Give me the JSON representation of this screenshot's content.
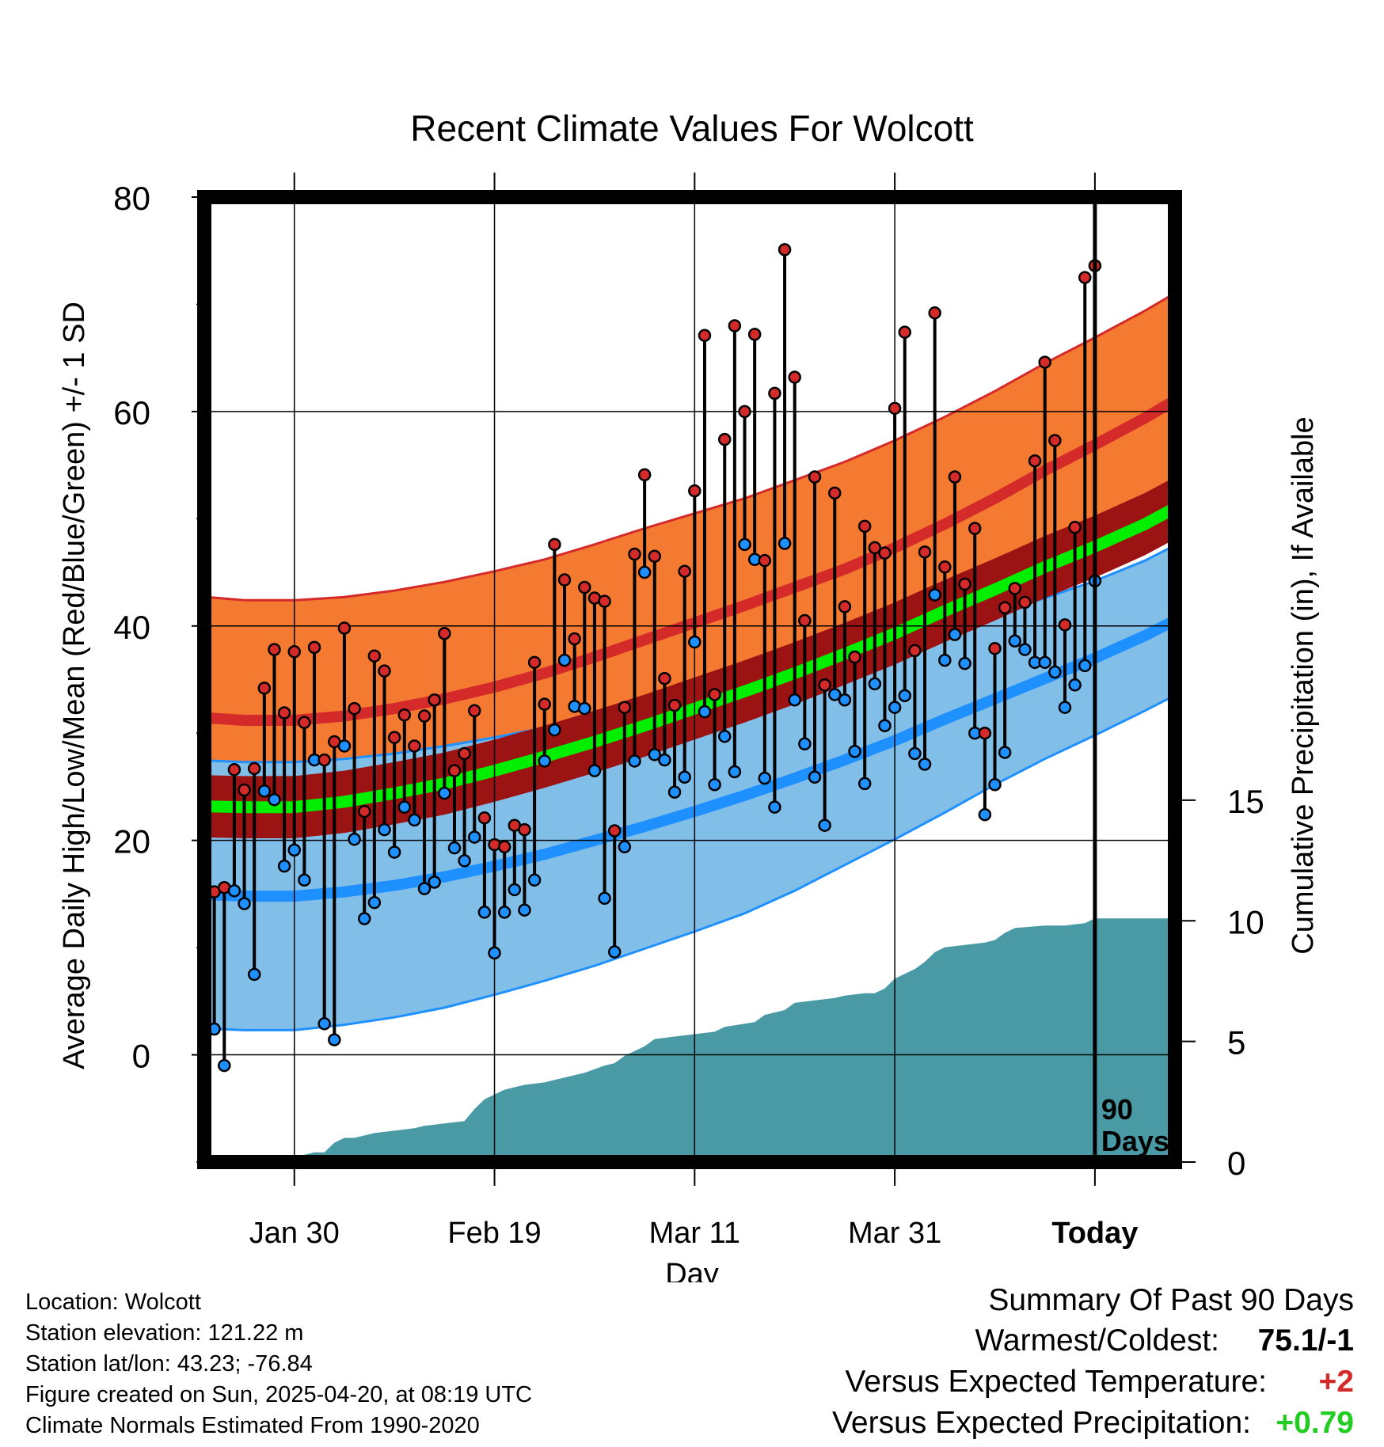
{
  "chart_data": {
    "type": "line",
    "title": "Recent Climate Values For Wolcott",
    "xlabel": "Day",
    "ylabel": "Average Daily High/Low/Mean (Red/Blue/Green) +/- 1 SD",
    "y2label": "Cumulative Precipitation (in), If Available",
    "ylim": [
      -10,
      80
    ],
    "y2lim": [
      0,
      40
    ],
    "y_ticks": [
      "0",
      "20",
      "40",
      "60",
      "80"
    ],
    "y2_ticks": [
      "0",
      "5",
      "10",
      "15"
    ],
    "x_range_days": [
      -89,
      8
    ],
    "x_ticks": [
      {
        "label": "Jan 30",
        "day": -80
      },
      {
        "label": "Feb 19",
        "day": -60
      },
      {
        "label": "Mar 11",
        "day": -40
      },
      {
        "label": "Mar 31",
        "day": -20
      },
      {
        "label": "Today",
        "day": 0
      }
    ],
    "today_marker": {
      "day": 0,
      "label_line1": "90",
      "label_line2": "Days"
    },
    "grid": true,
    "colors": {
      "high_band": "#f47a32",
      "high_mean": "#d42a2a",
      "low_band": "#82bfe8",
      "low_mean": "#1e90ff",
      "mean_band": "#9c1313",
      "mean": "#00ee00",
      "precip": "#4a9aa6",
      "high_dot": "#d42a2a",
      "low_dot": "#1e90ff"
    },
    "normals": {
      "day": [
        -90,
        -85,
        -80,
        -75,
        -70,
        -65,
        -60,
        -55,
        -50,
        -45,
        -40,
        -35,
        -30,
        -25,
        -20,
        -15,
        -10,
        -5,
        0,
        5,
        9
      ],
      "high_mean": [
        31.5,
        31.2,
        31.2,
        31.6,
        32.3,
        33.2,
        34.3,
        35.6,
        37.1,
        38.7,
        40.3,
        41.9,
        43.6,
        45.3,
        47.3,
        49.5,
        51.9,
        54.5,
        56.9,
        59.4,
        61.6
      ],
      "high_sd": [
        11.3,
        11.2,
        11.2,
        11.1,
        11.0,
        10.9,
        10.8,
        10.6,
        10.5,
        10.4,
        10.2,
        10.0,
        10.0,
        10.0,
        10.0,
        10.0,
        10.0,
        10.0,
        10.0,
        10.0,
        10.0
      ],
      "low_mean": [
        15.0,
        14.8,
        14.8,
        15.2,
        15.8,
        16.6,
        17.6,
        18.7,
        20.0,
        21.3,
        22.7,
        24.2,
        25.8,
        27.5,
        29.3,
        31.3,
        33.2,
        35.1,
        37.0,
        39.1,
        41.0
      ],
      "low_sd": [
        12.5,
        12.5,
        12.5,
        12.4,
        12.3,
        12.2,
        12.0,
        11.8,
        11.7,
        11.4,
        11.2,
        11.0,
        10.5,
        9.8,
        9.2,
        8.7,
        8.0,
        7.5,
        7.2,
        7.0,
        7.0
      ],
      "mean": [
        23.2,
        23.1,
        23.1,
        23.6,
        24.4,
        25.3,
        26.5,
        27.8,
        29.2,
        30.7,
        32.3,
        33.9,
        35.6,
        37.4,
        39.3,
        41.4,
        43.4,
        45.5,
        47.4,
        49.5,
        51.5
      ],
      "mean_sd": [
        2.9,
        2.9,
        2.9,
        2.9,
        2.9,
        2.9,
        2.9,
        2.9,
        2.9,
        2.9,
        2.9,
        2.9,
        2.9,
        2.9,
        2.9,
        2.9,
        2.9,
        2.9,
        2.9,
        2.9,
        2.9
      ]
    },
    "observed": [
      {
        "day": -89,
        "high": 16.8,
        "low": 7.1
      },
      {
        "day": -88,
        "high": 15.2,
        "low": 2.4
      },
      {
        "day": -87,
        "high": 15.6,
        "low": -1.0
      },
      {
        "day": -86,
        "high": 26.6,
        "low": 15.3
      },
      {
        "day": -85,
        "high": 24.7,
        "low": 14.1
      },
      {
        "day": -84,
        "high": 26.7,
        "low": 7.5
      },
      {
        "day": -83,
        "high": 34.2,
        "low": 24.6
      },
      {
        "day": -82,
        "high": 37.8,
        "low": 23.8
      },
      {
        "day": -81,
        "high": 31.9,
        "low": 17.6
      },
      {
        "day": -80,
        "high": 37.6,
        "low": 19.1
      },
      {
        "day": -79,
        "high": 31.0,
        "low": 16.3
      },
      {
        "day": -78,
        "high": 38.0,
        "low": 27.5
      },
      {
        "day": -77,
        "high": 27.5,
        "low": 2.9
      },
      {
        "day": -76,
        "high": 29.2,
        "low": 1.4
      },
      {
        "day": -75,
        "high": 39.8,
        "low": 28.8
      },
      {
        "day": -74,
        "high": 32.3,
        "low": 20.1
      },
      {
        "day": -73,
        "high": 22.7,
        "low": 12.7
      },
      {
        "day": -72,
        "high": 37.2,
        "low": 14.2
      },
      {
        "day": -71,
        "high": 35.8,
        "low": 21.0
      },
      {
        "day": -70,
        "high": 29.6,
        "low": 18.9
      },
      {
        "day": -69,
        "high": 31.7,
        "low": 23.1
      },
      {
        "day": -68,
        "high": 28.8,
        "low": 21.9
      },
      {
        "day": -67,
        "high": 31.6,
        "low": 15.5
      },
      {
        "day": -66,
        "high": 33.1,
        "low": 16.1
      },
      {
        "day": -65,
        "high": 39.3,
        "low": 24.4
      },
      {
        "day": -64,
        "high": 26.5,
        "low": 19.3
      },
      {
        "day": -63,
        "high": 28.1,
        "low": 18.1
      },
      {
        "day": -62,
        "high": 32.1,
        "low": 20.3
      },
      {
        "day": -61,
        "high": 22.1,
        "low": 13.3
      },
      {
        "day": -60,
        "high": 19.6,
        "low": 9.5
      },
      {
        "day": -59,
        "high": 19.4,
        "low": 13.3
      },
      {
        "day": -58,
        "high": 21.4,
        "low": 15.4
      },
      {
        "day": -57,
        "high": 21.0,
        "low": 13.5
      },
      {
        "day": -56,
        "high": 36.6,
        "low": 16.3
      },
      {
        "day": -55,
        "high": 32.7,
        "low": 27.4
      },
      {
        "day": -54,
        "high": 47.6,
        "low": 30.3
      },
      {
        "day": -53,
        "high": 44.3,
        "low": 36.8
      },
      {
        "day": -52,
        "high": 38.8,
        "low": 32.5
      },
      {
        "day": -51,
        "high": 43.6,
        "low": 32.3
      },
      {
        "day": -50,
        "high": 42.6,
        "low": 26.5
      },
      {
        "day": -49,
        "high": 42.3,
        "low": 14.6
      },
      {
        "day": -48,
        "high": 20.9,
        "low": 9.6
      },
      {
        "day": -47,
        "high": 32.4,
        "low": 19.4
      },
      {
        "day": -46,
        "high": 46.7,
        "low": 27.4
      },
      {
        "day": -45,
        "high": 54.1,
        "low": 45.0
      },
      {
        "day": -44,
        "high": 46.5,
        "low": 28.0
      },
      {
        "day": -43,
        "high": 35.1,
        "low": 27.5
      },
      {
        "day": -42,
        "high": 32.6,
        "low": 24.5
      },
      {
        "day": -41,
        "high": 45.1,
        "low": 25.9
      },
      {
        "day": -40,
        "high": 52.6,
        "low": 38.5
      },
      {
        "day": -39,
        "high": 67.1,
        "low": 32.0
      },
      {
        "day": -38,
        "high": 33.6,
        "low": 25.2
      },
      {
        "day": -37,
        "high": 57.4,
        "low": 29.7
      },
      {
        "day": -36,
        "high": 68.0,
        "low": 26.4
      },
      {
        "day": -35,
        "high": 60.0,
        "low": 47.6
      },
      {
        "day": -34,
        "high": 67.2,
        "low": 46.2
      },
      {
        "day": -33,
        "high": 46.1,
        "low": 25.8
      },
      {
        "day": -32,
        "high": 61.7,
        "low": 23.1
      },
      {
        "day": -31,
        "high": 75.1,
        "low": 47.7
      },
      {
        "day": -30,
        "high": 63.2,
        "low": 33.1
      },
      {
        "day": -29,
        "high": 40.5,
        "low": 29.0
      },
      {
        "day": -28,
        "high": 53.9,
        "low": 25.9
      },
      {
        "day": -27,
        "high": 34.5,
        "low": 21.4
      },
      {
        "day": -26,
        "high": 52.4,
        "low": 33.6
      },
      {
        "day": -25,
        "high": 41.8,
        "low": 33.1
      },
      {
        "day": -24,
        "high": 37.1,
        "low": 28.3
      },
      {
        "day": -23,
        "high": 49.3,
        "low": 25.3
      },
      {
        "day": -22,
        "high": 47.3,
        "low": 34.6
      },
      {
        "day": -21,
        "high": 46.8,
        "low": 30.7
      },
      {
        "day": -20,
        "high": 60.3,
        "low": 32.4
      },
      {
        "day": -19,
        "high": 67.4,
        "low": 33.5
      },
      {
        "day": -18,
        "high": 37.7,
        "low": 28.1
      },
      {
        "day": -17,
        "high": 46.9,
        "low": 27.1
      },
      {
        "day": -16,
        "high": 69.2,
        "low": 42.9
      },
      {
        "day": -15,
        "high": 45.5,
        "low": 36.8
      },
      {
        "day": -14,
        "high": 53.9,
        "low": 39.2
      },
      {
        "day": -13,
        "high": 43.9,
        "low": 36.5
      },
      {
        "day": -12,
        "high": 49.1,
        "low": 30.0
      },
      {
        "day": -11,
        "high": 30.0,
        "low": 22.4
      },
      {
        "day": -10,
        "high": 37.9,
        "low": 25.2
      },
      {
        "day": -9,
        "high": 41.7,
        "low": 28.2
      },
      {
        "day": -8,
        "high": 43.5,
        "low": 38.6
      },
      {
        "day": -7,
        "high": 42.2,
        "low": 37.8
      },
      {
        "day": -6,
        "high": 55.4,
        "low": 36.6
      },
      {
        "day": -5,
        "high": 64.6,
        "low": 36.6
      },
      {
        "day": -4,
        "high": 57.3,
        "low": 35.7
      },
      {
        "day": -3,
        "high": 40.1,
        "low": 32.4
      },
      {
        "day": -2,
        "high": 49.2,
        "low": 34.5
      },
      {
        "day": -1,
        "high": 72.5,
        "low": 36.3
      },
      {
        "day": 0,
        "high": 73.6,
        "low": 44.2
      }
    ],
    "precip_cumulative": {
      "day": [
        -89,
        -80,
        -79,
        -78,
        -77,
        -76,
        -75,
        -74,
        -72,
        -70,
        -68,
        -67,
        -65,
        -63,
        -62,
        -61,
        -60,
        -59,
        -58,
        -57,
        -55,
        -53,
        -51,
        -49,
        -48,
        -47,
        -46,
        -45,
        -44,
        -42,
        -38,
        -37,
        -34,
        -33,
        -31,
        -30,
        -26,
        -25,
        -23,
        -22,
        -21,
        -20,
        -19,
        -18,
        -17,
        -16,
        -15,
        -13,
        -11,
        -10,
        -9,
        -8,
        -5,
        -3,
        -1,
        0,
        9
      ],
      "value": [
        0.0,
        0.0,
        0.3,
        0.4,
        0.4,
        0.8,
        1.0,
        1.0,
        1.2,
        1.3,
        1.4,
        1.5,
        1.6,
        1.7,
        2.2,
        2.6,
        2.8,
        3.0,
        3.1,
        3.2,
        3.3,
        3.5,
        3.7,
        4.0,
        4.1,
        4.4,
        4.6,
        4.8,
        5.1,
        5.2,
        5.4,
        5.6,
        5.8,
        6.1,
        6.3,
        6.6,
        6.8,
        6.9,
        7.0,
        7.0,
        7.2,
        7.6,
        7.8,
        8.0,
        8.3,
        8.7,
        8.9,
        9.0,
        9.1,
        9.2,
        9.5,
        9.7,
        9.8,
        9.8,
        9.9,
        10.1,
        10.1
      ]
    }
  },
  "footer": {
    "location": "Location: Wolcott",
    "elevation": "Station elevation: 121.22 m",
    "latlon": "Station lat/lon: 43.23; -76.84",
    "created": "Figure created on Sun, 2025-04-20, at 08:19 UTC",
    "normals": "Climate Normals Estimated From 1990-2020"
  },
  "summary": {
    "heading": "Summary Of Past 90 Days",
    "warmest_label": "Warmest/Coldest:",
    "warmest_value": "75.1/-1",
    "temp_label": "Versus Expected Temperature:",
    "temp_value": "+2",
    "temp_color": "#d42a2a",
    "precip_label": "Versus Expected Precipitation:",
    "precip_value": "+0.79",
    "precip_color": "#22cc22"
  }
}
